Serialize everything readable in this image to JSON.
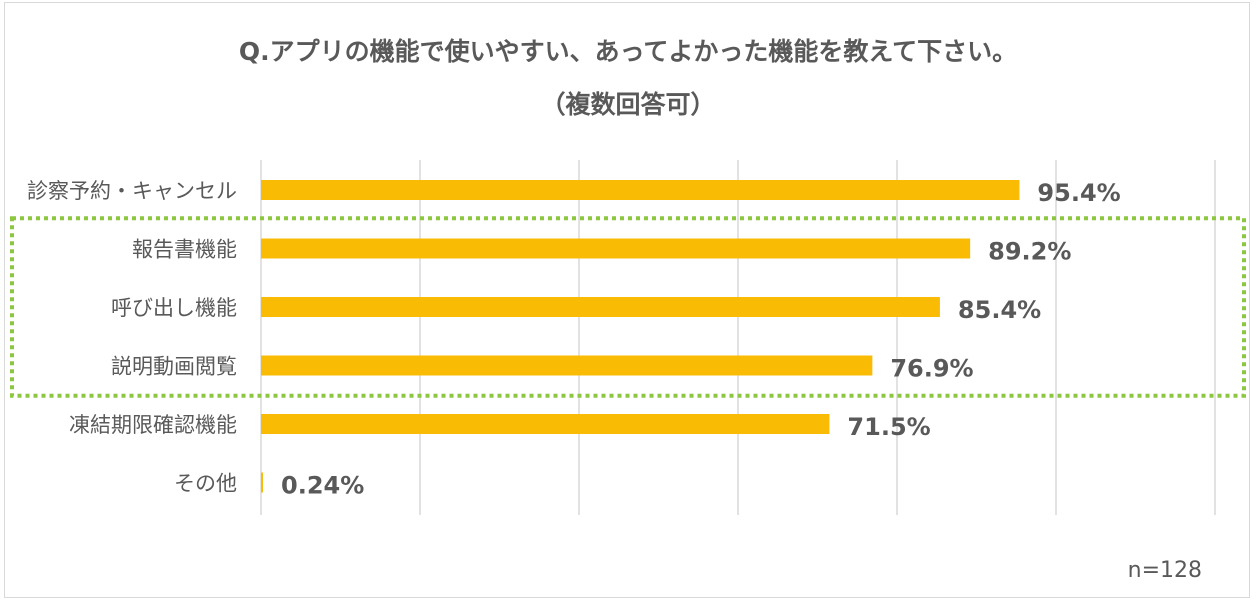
{
  "chart_data": {
    "type": "bar",
    "orientation": "horizontal",
    "title": "Q.アプリの機能で使いやすい、あってよかった機能を教えて下さい。",
    "subtitle": "（複数回答可）",
    "categories": [
      "診察予約・キャンセル",
      "報告書機能",
      "呼び出し機能",
      "説明動画閲覧",
      "凍結期限確認機能",
      "その他"
    ],
    "values": [
      95.4,
      89.2,
      85.4,
      76.9,
      71.5,
      0.24
    ],
    "value_labels": [
      "95.4%",
      "89.2%",
      "85.4%",
      "76.9%",
      "71.5%",
      "0.24%"
    ],
    "xlim": [
      0,
      120
    ],
    "grid": true,
    "highlighted_categories": [
      "報告書機能",
      "呼び出し機能",
      "説明動画閲覧"
    ],
    "note": "n=128"
  },
  "colors": {
    "bar": "#FABB05",
    "highlight_border": "#8DC63F",
    "gridline": "#d9d9d9",
    "text": "#595959"
  }
}
